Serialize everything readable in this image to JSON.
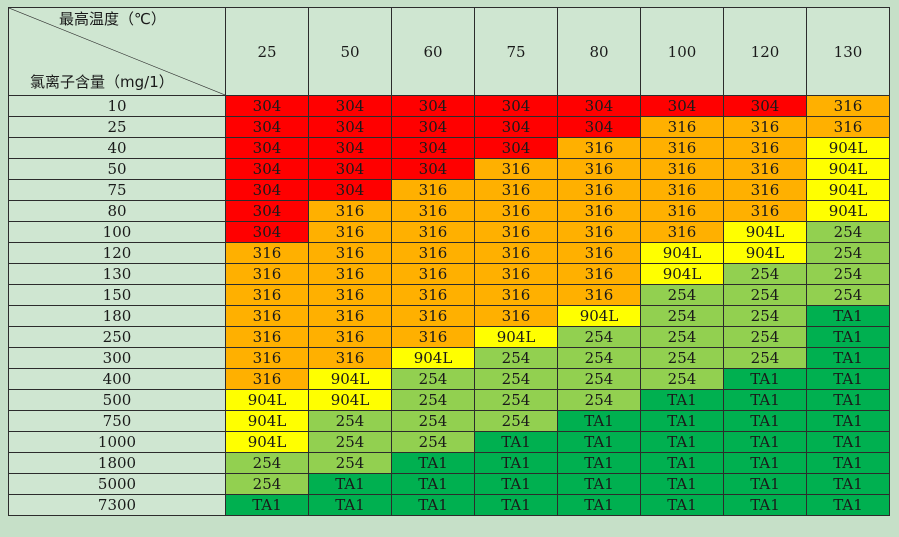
{
  "table": {
    "corner_top": "最高温度（℃）",
    "corner_bottom": "氯离子含量（mg/1）",
    "temperatures": [
      "25",
      "50",
      "60",
      "75",
      "80",
      "100",
      "120",
      "130"
    ],
    "rows": [
      {
        "chloride": "10",
        "cells": [
          "304",
          "304",
          "304",
          "304",
          "304",
          "304",
          "304",
          "316"
        ]
      },
      {
        "chloride": "25",
        "cells": [
          "304",
          "304",
          "304",
          "304",
          "304",
          "316",
          "316",
          "316"
        ]
      },
      {
        "chloride": "40",
        "cells": [
          "304",
          "304",
          "304",
          "304",
          "316",
          "316",
          "316",
          "904L"
        ]
      },
      {
        "chloride": "50",
        "cells": [
          "304",
          "304",
          "304",
          "316",
          "316",
          "316",
          "316",
          "904L"
        ]
      },
      {
        "chloride": "75",
        "cells": [
          "304",
          "304",
          "316",
          "316",
          "316",
          "316",
          "316",
          "904L"
        ]
      },
      {
        "chloride": "80",
        "cells": [
          "304",
          "316",
          "316",
          "316",
          "316",
          "316",
          "316",
          "904L"
        ]
      },
      {
        "chloride": "100",
        "cells": [
          "304",
          "316",
          "316",
          "316",
          "316",
          "316",
          "904L",
          "254"
        ]
      },
      {
        "chloride": "120",
        "cells": [
          "316",
          "316",
          "316",
          "316",
          "316",
          "904L",
          "904L",
          "254"
        ]
      },
      {
        "chloride": "130",
        "cells": [
          "316",
          "316",
          "316",
          "316",
          "316",
          "904L",
          "254",
          "254"
        ]
      },
      {
        "chloride": "150",
        "cells": [
          "316",
          "316",
          "316",
          "316",
          "316",
          "254",
          "254",
          "254"
        ]
      },
      {
        "chloride": "180",
        "cells": [
          "316",
          "316",
          "316",
          "316",
          "904L",
          "254",
          "254",
          "TA1"
        ]
      },
      {
        "chloride": "250",
        "cells": [
          "316",
          "316",
          "316",
          "904L",
          "254",
          "254",
          "254",
          "TA1"
        ]
      },
      {
        "chloride": "300",
        "cells": [
          "316",
          "316",
          "904L",
          "254",
          "254",
          "254",
          "254",
          "TA1"
        ]
      },
      {
        "chloride": "400",
        "cells": [
          "316",
          "904L",
          "254",
          "254",
          "254",
          "254",
          "TA1",
          "TA1"
        ]
      },
      {
        "chloride": "500",
        "cells": [
          "904L",
          "904L",
          "254",
          "254",
          "254",
          "TA1",
          "TA1",
          "TA1"
        ]
      },
      {
        "chloride": "750",
        "cells": [
          "904L",
          "254",
          "254",
          "254",
          "TA1",
          "TA1",
          "TA1",
          "TA1"
        ]
      },
      {
        "chloride": "1000",
        "cells": [
          "904L",
          "254",
          "254",
          "TA1",
          "TA1",
          "TA1",
          "TA1",
          "TA1"
        ]
      },
      {
        "chloride": "1800",
        "cells": [
          "254",
          "254",
          "TA1",
          "TA1",
          "TA1",
          "TA1",
          "TA1",
          "TA1"
        ]
      },
      {
        "chloride": "5000",
        "cells": [
          "254",
          "TA1",
          "TA1",
          "TA1",
          "TA1",
          "TA1",
          "TA1",
          "TA1"
        ]
      },
      {
        "chloride": "7300",
        "cells": [
          "TA1",
          "TA1",
          "TA1",
          "TA1",
          "TA1",
          "TA1",
          "TA1",
          "TA1"
        ]
      }
    ]
  },
  "colors": {
    "304": "#ff0000",
    "316": "#ffb000",
    "904L": "#ffff00",
    "254": "#92d050",
    "TA1": "#00b050",
    "header_bg": "#cfe6d1"
  }
}
